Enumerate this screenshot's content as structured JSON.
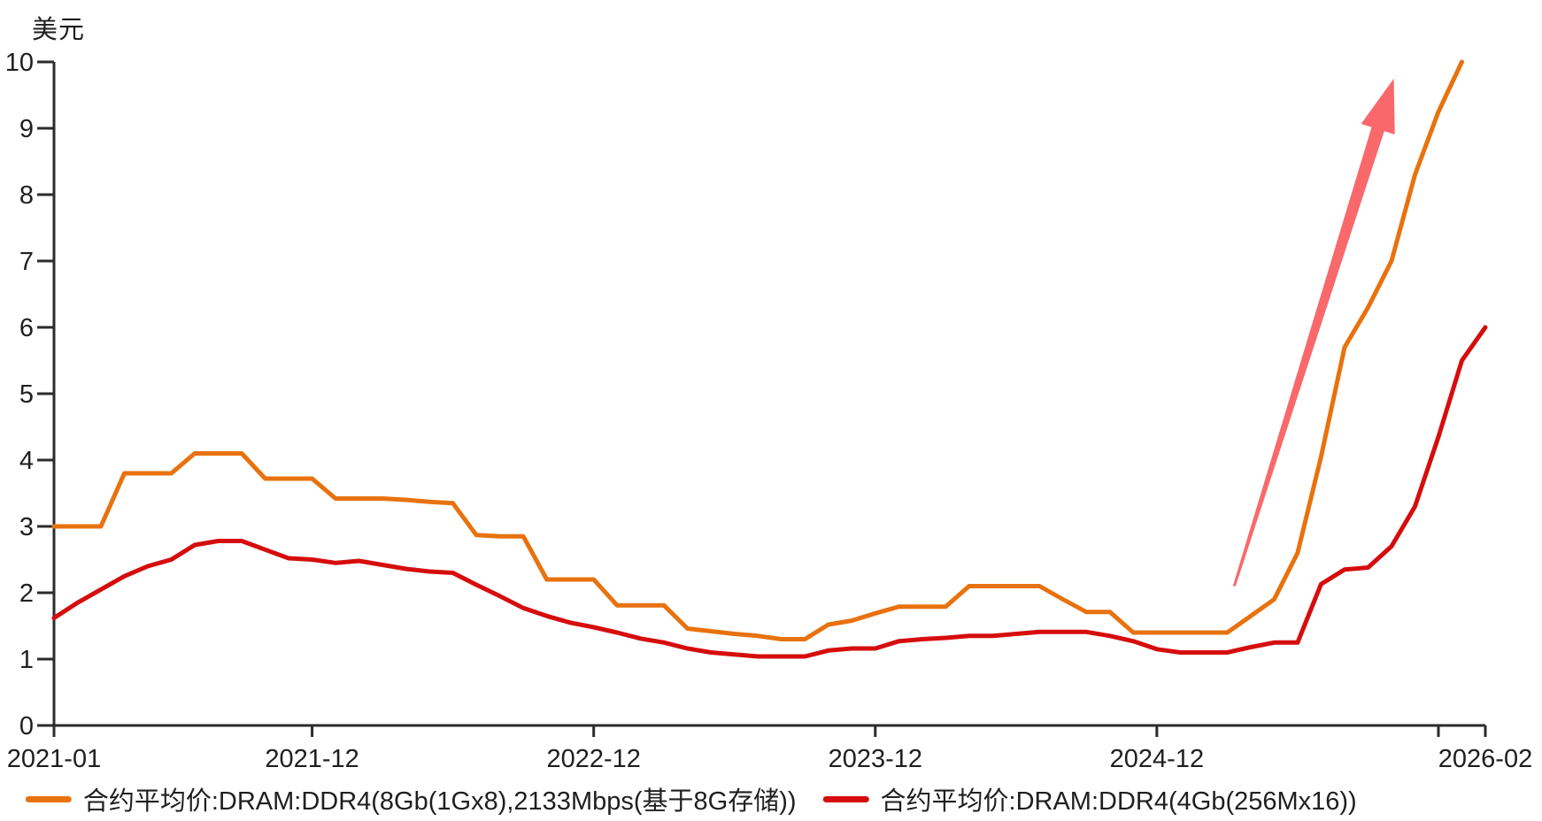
{
  "chart_data": {
    "type": "line",
    "title": "",
    "ylabel": "美元",
    "xlabel": "",
    "ylim": [
      0,
      10
    ],
    "y_ticks": [
      0,
      1,
      2,
      3,
      4,
      5,
      6,
      7,
      8,
      9,
      10
    ],
    "grid": false,
    "legend_position": "bottom",
    "axis_color": "#2b2b2b",
    "text_color": "#1f1f1f",
    "x_axis": {
      "start_month": "2021-01",
      "end_month": "2026-02",
      "months_span": 61,
      "ticks": [
        {
          "month_index": 0,
          "label": "2021-01"
        },
        {
          "month_index": 11,
          "label": "2021-12"
        },
        {
          "month_index": 23,
          "label": "2022-12"
        },
        {
          "month_index": 35,
          "label": "2023-12"
        },
        {
          "month_index": 47,
          "label": "2024-12"
        },
        {
          "month_index": 59,
          "label": ""
        },
        {
          "month_index": 61,
          "label": "2026-02"
        }
      ]
    },
    "series": [
      {
        "key": "ddr4-8gb",
        "name": "合约平均价:DRAM:DDR4(8Gb(1Gx8),2133Mbps(基于8G存储))",
        "color": "#E8720E",
        "start_month": "2021-01",
        "start_month_index": 0,
        "values": [
          3.0,
          3.0,
          3.0,
          3.8,
          3.8,
          3.8,
          4.1,
          4.1,
          4.1,
          3.72,
          3.72,
          3.72,
          3.42,
          3.42,
          3.42,
          3.4,
          3.37,
          3.35,
          2.87,
          2.85,
          2.85,
          2.2,
          2.2,
          2.2,
          1.81,
          1.81,
          1.81,
          1.46,
          1.42,
          1.38,
          1.35,
          1.3,
          1.3,
          1.52,
          1.58,
          1.69,
          1.79,
          1.79,
          1.79,
          2.1,
          2.1,
          2.1,
          2.1,
          1.9,
          1.71,
          1.71,
          1.4,
          1.4,
          1.4,
          1.4,
          1.4,
          1.65,
          1.9,
          2.6,
          4.05,
          5.7,
          6.3,
          7.0,
          8.3,
          9.25,
          10.0
        ]
      },
      {
        "key": "ddr4-4gb",
        "name": "合约平均价:DRAM:DDR4(4Gb(256Mx16))",
        "color": "#D60D0D",
        "start_month": "2021-01",
        "start_month_index": 0,
        "values": [
          1.62,
          1.85,
          2.05,
          2.25,
          2.4,
          2.5,
          2.72,
          2.78,
          2.78,
          2.65,
          2.52,
          2.5,
          2.45,
          2.48,
          2.42,
          2.36,
          2.32,
          2.3,
          2.12,
          1.95,
          1.77,
          1.65,
          1.55,
          1.48,
          1.4,
          1.31,
          1.25,
          1.16,
          1.1,
          1.07,
          1.04,
          1.04,
          1.04,
          1.13,
          1.16,
          1.16,
          1.27,
          1.3,
          1.32,
          1.35,
          1.35,
          1.38,
          1.41,
          1.41,
          1.41,
          1.35,
          1.27,
          1.15,
          1.1,
          1.1,
          1.1,
          1.18,
          1.25,
          1.25,
          2.13,
          2.35,
          2.38,
          2.7,
          3.3,
          4.35,
          5.5,
          6.0
        ]
      }
    ],
    "annotation_arrow": {
      "description": "upward trend arrow",
      "color": "#F9696B",
      "from": {
        "month_index": 50.3,
        "value": 2.1
      },
      "to": {
        "month_index": 57.1,
        "value": 9.75
      }
    }
  }
}
